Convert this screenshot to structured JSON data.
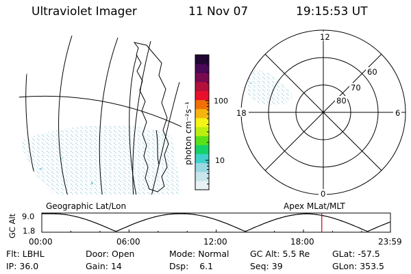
{
  "header": {
    "instrument": "Ultraviolet Imager",
    "date": "11 Nov 07",
    "time": "19:15:53 UT"
  },
  "colorbar": {
    "label": "photon cm⁻²s⁻¹",
    "ticks": [
      "100",
      "10"
    ],
    "scale": "log",
    "colors": [
      "#e8f2f4",
      "#c8e6ec",
      "#9ad8e2",
      "#3fd0cc",
      "#16d06a",
      "#5ae01a",
      "#bcee12",
      "#f4f416",
      "#f7b40f",
      "#f07008",
      "#e8102a",
      "#b4103c",
      "#7a0a50",
      "#4a0858",
      "#200832"
    ]
  },
  "polar": {
    "mlt_labels": {
      "top": "12",
      "left": "18",
      "right": "6",
      "bottom": "0"
    },
    "lat_labels": [
      "60",
      "70",
      "80"
    ]
  },
  "panel_labels": {
    "left": "Geographic Lat/Lon",
    "right": "Apex MLat/MLT"
  },
  "altitude_plot": {
    "ylabel": "GC Alt",
    "y_ticks": [
      "9.0",
      "1.8"
    ],
    "x_ticks": [
      "00:00",
      "06:00",
      "12:00",
      "18:00",
      "23:59"
    ],
    "marker_time_hours": 19.26,
    "marker_color": "#cc0000"
  },
  "info": {
    "row1": [
      {
        "label": "Flt:",
        "value": "LBHL"
      },
      {
        "label": "Door:",
        "value": "Open"
      },
      {
        "label": "Mode:",
        "value": "Normal"
      },
      {
        "label": "GC Alt:",
        "value": "5.5 Re"
      },
      {
        "label": "GLat:",
        "value": "-57.5"
      }
    ],
    "row2": [
      {
        "label": "IP:",
        "value": "36.0"
      },
      {
        "label": "Gain:",
        "value": "14"
      },
      {
        "label": "Dsp:",
        "value": "6.1"
      },
      {
        "label": "Seq:",
        "value": "39"
      },
      {
        "label": "GLon:",
        "value": "353.5"
      }
    ]
  }
}
